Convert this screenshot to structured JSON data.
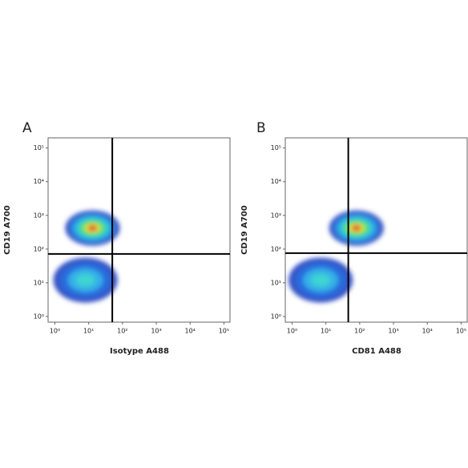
{
  "chart_data": [
    {
      "type": "density",
      "title": "A",
      "x_label": "Isotype A488",
      "y_label": "CD19 A700",
      "log_x": true,
      "log_y": true,
      "xlim": [
        0.63,
        160000
      ],
      "ylim": [
        0.68,
        200000
      ],
      "xticks": [
        {
          "value": 1,
          "label": "10⁰"
        },
        {
          "value": 10,
          "label": "10¹"
        },
        {
          "value": 100,
          "label": "10²"
        },
        {
          "value": 1000,
          "label": "10³"
        },
        {
          "value": 10000,
          "label": "10⁴"
        },
        {
          "value": 100000,
          "label": "10⁵"
        }
      ],
      "yticks": [
        {
          "value": 1,
          "label": "10⁰"
        },
        {
          "value": 10,
          "label": "10¹"
        },
        {
          "value": 100,
          "label": "10²"
        },
        {
          "value": 1000,
          "label": "10³"
        },
        {
          "value": 10000,
          "label": "10⁴"
        },
        {
          "value": 100000,
          "label": "10⁵"
        }
      ],
      "gate_x": 50,
      "gate_y": 72,
      "x": [
        13,
        8
      ],
      "values": [
        420,
        12
      ]
    },
    {
      "type": "density",
      "title": "B",
      "x_label": "CD81 A488",
      "y_label": "CD19 A700",
      "log_x": true,
      "log_y": true,
      "xlim": [
        0.63,
        160000
      ],
      "ylim": [
        0.68,
        200000
      ],
      "xticks": [
        {
          "value": 1,
          "label": "10⁰"
        },
        {
          "value": 10,
          "label": "10¹"
        },
        {
          "value": 100,
          "label": "10²"
        },
        {
          "value": 1000,
          "label": "10³"
        },
        {
          "value": 10000,
          "label": "10⁴"
        },
        {
          "value": 100000,
          "label": "10⁵"
        }
      ],
      "yticks": [
        {
          "value": 1,
          "label": "10⁰"
        },
        {
          "value": 10,
          "label": "10¹"
        },
        {
          "value": 100,
          "label": "10²"
        },
        {
          "value": 1000,
          "label": "10³"
        },
        {
          "value": 10000,
          "label": "10⁴"
        },
        {
          "value": 100000,
          "label": "10⁵"
        }
      ],
      "gate_x": 46,
      "gate_y": 76,
      "x": [
        80,
        7
      ],
      "values": [
        420,
        12
      ]
    }
  ]
}
